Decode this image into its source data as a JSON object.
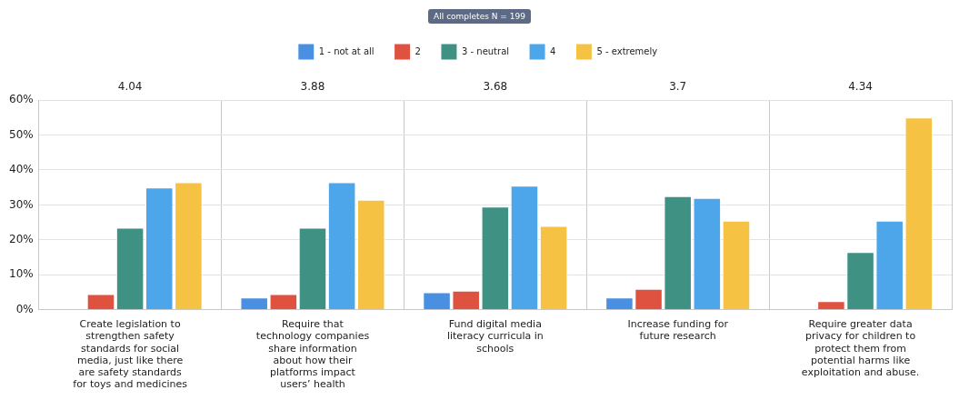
{
  "chart_data": {
    "type": "bar",
    "title": "All completes N = 199",
    "categories": [
      "Create legislation to strengthen safety standards for social media, just like there are safety standards for toys and medicines",
      "Require that technology companies share information about how their platforms impact users’ health",
      "Fund digital media literacy curricula in schools",
      "Increase funding for future research",
      "Require greater data privacy for children to protect them from potential harms like exploitation and abuse."
    ],
    "series": [
      {
        "name": "1 - not at all",
        "color": "#4a90e2",
        "values": [
          0,
          3.5,
          5,
          3.5,
          0
        ]
      },
      {
        "name": "2",
        "color": "#e05240",
        "values": [
          4.5,
          4.5,
          5.5,
          6,
          2.5
        ]
      },
      {
        "name": "3 - neutral",
        "color": "#3f9183",
        "values": [
          23.5,
          23.5,
          29.5,
          32.5,
          16.5
        ]
      },
      {
        "name": "4",
        "color": "#4da6ea",
        "values": [
          35,
          36.5,
          35.5,
          32,
          25.5
        ]
      },
      {
        "name": "5 - extremely",
        "color": "#f5c244",
        "values": [
          36.5,
          31.5,
          24,
          25.5,
          55
        ]
      }
    ],
    "annotations": [
      "4.04",
      "3.88",
      "3.68",
      "3.7",
      "4.34"
    ],
    "ylim": [
      0,
      60
    ],
    "yticks": [
      {
        "value": 0,
        "label": "0%"
      },
      {
        "value": 10,
        "label": "10%"
      },
      {
        "value": 20,
        "label": "20%"
      },
      {
        "value": 30,
        "label": "30%"
      },
      {
        "value": 40,
        "label": "40%"
      },
      {
        "value": 50,
        "label": "50%"
      },
      {
        "value": 60,
        "label": "60%"
      }
    ],
    "grid": true,
    "legend": "top"
  }
}
